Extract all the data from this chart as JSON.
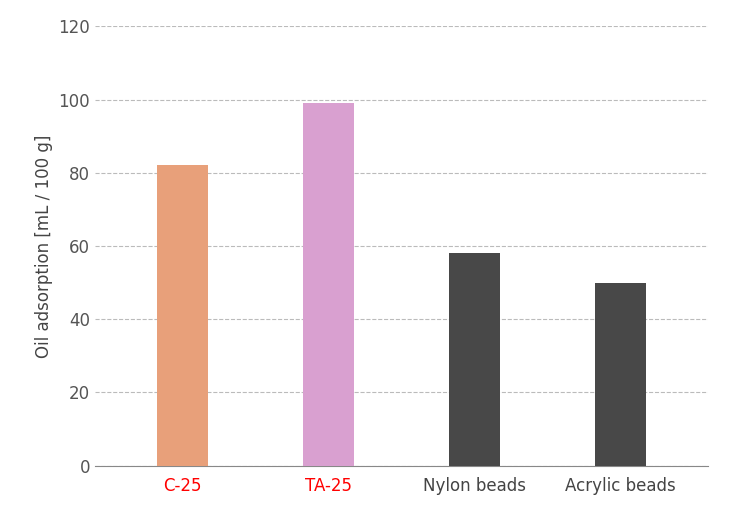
{
  "categories": [
    "C-25",
    "TA-25",
    "Nylon beads",
    "Acrylic beads"
  ],
  "values": [
    82,
    99,
    58,
    50
  ],
  "bar_colors": [
    "#E8A07A",
    "#D9A0D0",
    "#484848",
    "#484848"
  ],
  "xlabel_colors": [
    "#FF0000",
    "#FF0000",
    "#444444",
    "#444444"
  ],
  "ylabel": "Oil adsorption [mL / 100 g]",
  "ylim": [
    0,
    120
  ],
  "yticks": [
    0,
    20,
    40,
    60,
    80,
    100,
    120
  ],
  "background_color": "#ffffff",
  "bar_width": 0.35,
  "grid_color": "#bbbbbb",
  "tick_label_fontsize": 12,
  "axis_label_fontsize": 12
}
